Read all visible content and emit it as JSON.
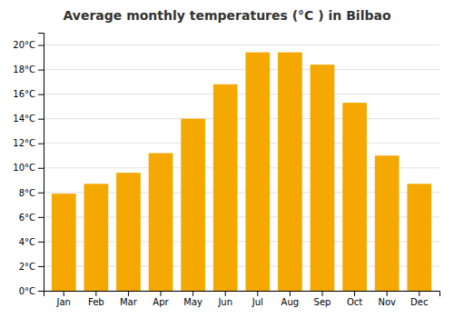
{
  "chart_data": {
    "type": "bar",
    "title": "Average monthly temperatures (°C ) in Bilbao",
    "categories": [
      "Jan",
      "Feb",
      "Mar",
      "Apr",
      "May",
      "Jun",
      "Jul",
      "Aug",
      "Sep",
      "Oct",
      "Nov",
      "Dec"
    ],
    "values": [
      7.9,
      8.7,
      9.6,
      11.2,
      14.0,
      16.8,
      19.4,
      19.4,
      18.4,
      15.3,
      11.0,
      8.7
    ],
    "color": "#F5A800",
    "ylim": [
      0,
      21
    ],
    "yticks": [
      {
        "value": 0,
        "label": "0°C"
      },
      {
        "value": 2,
        "label": "2°C"
      },
      {
        "value": 4,
        "label": "4°C"
      },
      {
        "value": 6,
        "label": "6°C"
      },
      {
        "value": 8,
        "label": "8°C"
      },
      {
        "value": 10,
        "label": "10°C"
      },
      {
        "value": 12,
        "label": "12°C"
      },
      {
        "value": 14,
        "label": "14°C"
      },
      {
        "value": 16,
        "label": "16°C"
      },
      {
        "value": 18,
        "label": "18°C"
      },
      {
        "value": 20,
        "label": "20°C"
      }
    ],
    "grid": true
  }
}
